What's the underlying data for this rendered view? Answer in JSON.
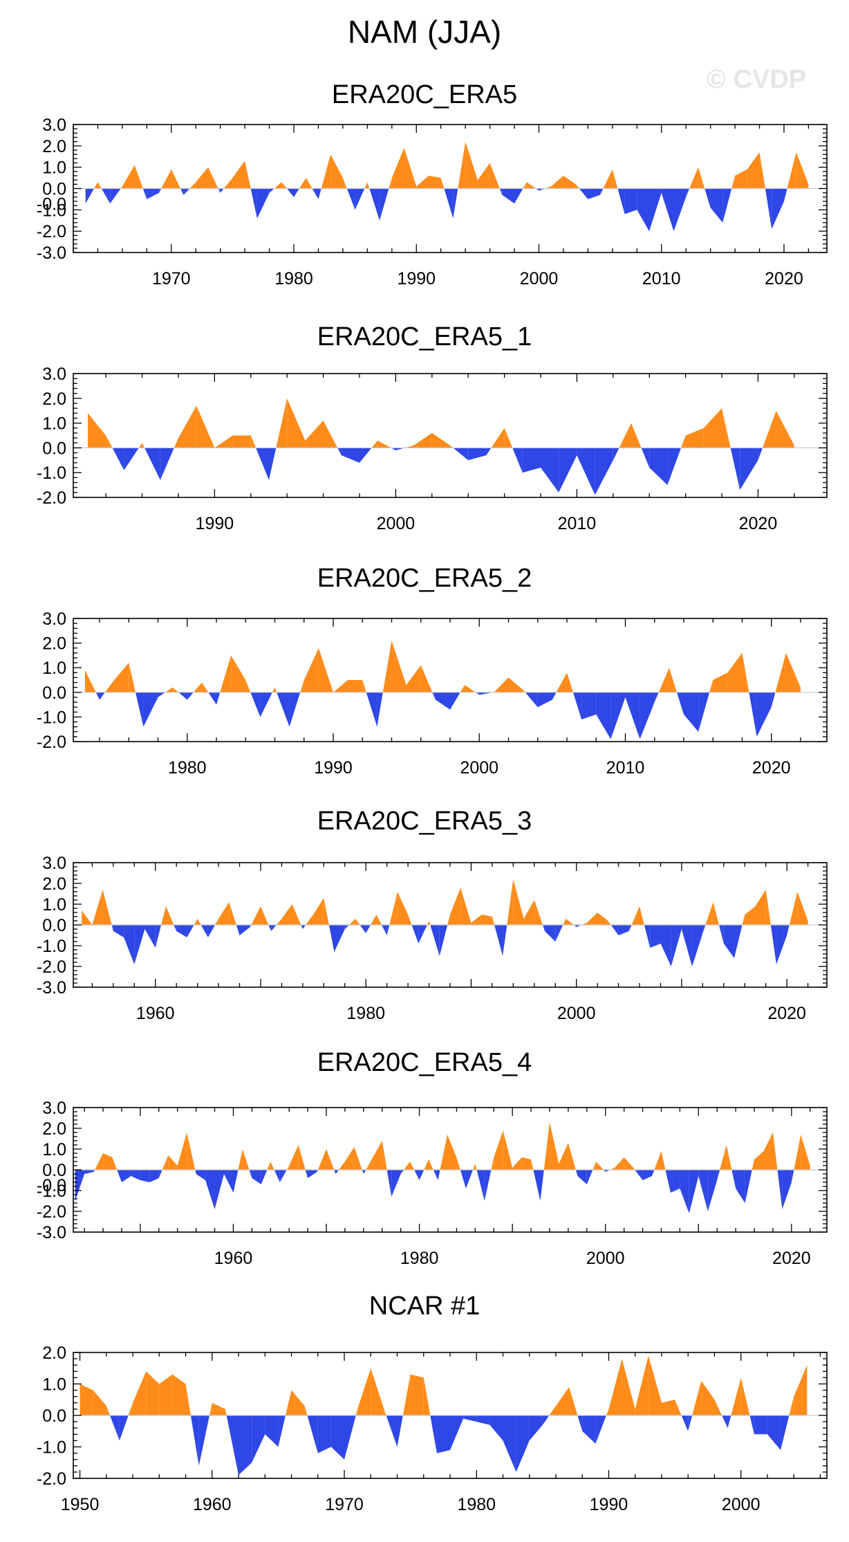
{
  "title": "NAM (JJA)",
  "watermark": "© CVDP",
  "colors": {
    "positive": "#ff8c1a",
    "negative": "#2e47e6",
    "axis": "#000000",
    "zero_line": "#c8c8c8"
  },
  "chart_data": [
    {
      "type": "area",
      "title": "ERA20C_ERA5",
      "xlim": [
        1962,
        2023.5
      ],
      "ylim": [
        -3.0,
        3.0
      ],
      "yticks": [
        "3.0",
        "2.0",
        "1.0",
        "0.0",
        "-0.0",
        "-1.0",
        "-2.0",
        "-3.0"
      ],
      "ytick_values": [
        3.0,
        2.0,
        1.0,
        0.0,
        -0.0,
        -1.0,
        -2.0,
        -3.0
      ],
      "xticks": [
        1970,
        1980,
        1990,
        2000,
        2010,
        2020
      ],
      "x_start": 1963,
      "values": [
        -0.7,
        0.3,
        -0.7,
        0.1,
        1.1,
        -0.5,
        -0.2,
        0.9,
        -0.3,
        0.3,
        1.0,
        -0.2,
        0.5,
        1.3,
        -1.4,
        -0.2,
        0.3,
        -0.4,
        0.5,
        -0.5,
        1.6,
        0.5,
        -1.0,
        0.3,
        -1.5,
        0.5,
        1.9,
        0.1,
        0.6,
        0.5,
        -1.4,
        2.2,
        0.4,
        1.2,
        -0.3,
        -0.7,
        0.3,
        -0.1,
        0.1,
        0.6,
        0.2,
        -0.5,
        -0.3,
        0.9,
        -1.2,
        -1.0,
        -2.0,
        -0.2,
        -2.0,
        -0.4,
        1.0,
        -0.9,
        -1.6,
        0.6,
        0.9,
        1.7,
        -1.9,
        -0.6,
        1.7,
        0.2
      ]
    },
    {
      "type": "area",
      "title": "ERA20C_ERA5_1",
      "xlim": [
        1982.2,
        2023.8
      ],
      "ylim": [
        -2.0,
        3.0
      ],
      "yticks": [
        "3.0",
        "2.0",
        "1.0",
        "0.0",
        "-1.0",
        "-2.0"
      ],
      "ytick_values": [
        3.0,
        2.0,
        1.0,
        0.0,
        -1.0,
        -2.0
      ],
      "xticks": [
        1990,
        2000,
        2010,
        2020
      ],
      "x_start": 1983,
      "values": [
        1.4,
        0.5,
        -0.9,
        0.2,
        -1.3,
        0.4,
        1.7,
        0.0,
        0.5,
        0.5,
        -1.3,
        2.0,
        0.3,
        1.1,
        -0.3,
        -0.6,
        0.3,
        -0.1,
        0.1,
        0.6,
        0.1,
        -0.5,
        -0.3,
        0.8,
        -1.0,
        -0.8,
        -1.8,
        -0.3,
        -1.9,
        -0.5,
        1.0,
        -0.8,
        -1.5,
        0.5,
        0.8,
        1.6,
        -1.7,
        -0.5,
        1.5,
        0.1
      ]
    },
    {
      "type": "area",
      "title": "ERA20C_ERA5_2",
      "xlim": [
        1972.2,
        2023.8
      ],
      "ylim": [
        -2.0,
        3.0
      ],
      "yticks": [
        "3.0",
        "2.0",
        "1.0",
        "0.0",
        "-1.0",
        "-2.0"
      ],
      "ytick_values": [
        3.0,
        2.0,
        1.0,
        0.0,
        -1.0,
        -2.0
      ],
      "xticks": [
        1980,
        1990,
        2000,
        2010,
        2020
      ],
      "x_start": 1973,
      "values": [
        0.9,
        -0.3,
        0.5,
        1.2,
        -1.4,
        -0.2,
        0.2,
        -0.3,
        0.4,
        -0.5,
        1.5,
        0.5,
        -1.0,
        0.2,
        -1.4,
        0.5,
        1.8,
        0.0,
        0.5,
        0.5,
        -1.4,
        2.1,
        0.3,
        1.1,
        -0.3,
        -0.7,
        0.3,
        -0.1,
        0.0,
        0.6,
        0.1,
        -0.6,
        -0.3,
        0.8,
        -1.1,
        -0.9,
        -1.9,
        -0.2,
        -1.9,
        -0.4,
        1.0,
        -0.9,
        -1.6,
        0.5,
        0.8,
        1.6,
        -1.8,
        -0.6,
        1.6,
        0.2
      ]
    },
    {
      "type": "area",
      "title": "ERA20C_ERA5_3",
      "xlim": [
        1952.2,
        2023.8
      ],
      "ylim": [
        -3.0,
        3.0
      ],
      "yticks": [
        "3.0",
        "2.0",
        "1.0",
        "0.0",
        "-1.0",
        "-2.0",
        "-3.0"
      ],
      "ytick_values": [
        3.0,
        2.0,
        1.0,
        0.0,
        -1.0,
        -2.0,
        -3.0
      ],
      "xticks": [
        1960,
        1980,
        2000,
        2020
      ],
      "x_start": 1953,
      "values": [
        0.7,
        0.0,
        1.7,
        -0.3,
        -0.6,
        -1.9,
        -0.2,
        -1.1,
        0.9,
        -0.3,
        -0.6,
        0.3,
        -0.6,
        0.3,
        1.1,
        -0.5,
        -0.1,
        0.9,
        -0.3,
        0.3,
        1.0,
        -0.2,
        0.5,
        1.3,
        -1.3,
        -0.2,
        0.3,
        -0.4,
        0.5,
        -0.5,
        1.6,
        0.5,
        -0.9,
        0.2,
        -1.5,
        0.5,
        1.8,
        0.1,
        0.5,
        0.4,
        -1.5,
        2.2,
        0.3,
        1.2,
        -0.3,
        -0.8,
        0.3,
        -0.1,
        0.1,
        0.6,
        0.2,
        -0.5,
        -0.3,
        0.9,
        -1.1,
        -0.9,
        -2.0,
        -0.2,
        -2.0,
        -0.4,
        1.1,
        -0.9,
        -1.6,
        0.5,
        0.9,
        1.7,
        -1.9,
        -0.5,
        1.6,
        0.2
      ]
    },
    {
      "type": "area",
      "title": "ERA20C_ERA5_4",
      "xlim": [
        1942.8,
        2023.8
      ],
      "ylim": [
        -3.0,
        3.0
      ],
      "yticks": [
        "3.0",
        "2.0",
        "1.0",
        "0.0",
        "-0.0",
        "-1.0",
        "-2.0",
        "-3.0"
      ],
      "ytick_values": [
        3.0,
        2.0,
        1.0,
        0.0,
        -0.0,
        -1.0,
        -2.0,
        -3.0
      ],
      "xticks": [
        1960,
        1980,
        2000,
        2020
      ],
      "x_start": 1943,
      "values": [
        -1.5,
        -0.2,
        -0.1,
        0.8,
        0.6,
        -0.6,
        -0.3,
        -0.5,
        -0.6,
        -0.4,
        0.7,
        0.2,
        1.8,
        -0.2,
        -0.5,
        -1.9,
        -0.2,
        -1.1,
        1.0,
        -0.4,
        -0.7,
        0.4,
        -0.6,
        0.2,
        1.2,
        -0.4,
        -0.1,
        1.0,
        -0.2,
        0.4,
        1.1,
        -0.2,
        0.6,
        1.4,
        -1.3,
        -0.2,
        0.4,
        -0.5,
        0.5,
        -0.5,
        1.7,
        0.6,
        -0.9,
        0.3,
        -1.5,
        0.6,
        1.9,
        0.1,
        0.6,
        0.5,
        -1.5,
        2.3,
        0.3,
        1.3,
        -0.3,
        -0.7,
        0.4,
        -0.1,
        0.1,
        0.6,
        0.1,
        -0.5,
        -0.3,
        0.9,
        -1.1,
        -0.9,
        -2.1,
        -0.3,
        -2.0,
        -0.5,
        1.2,
        -0.9,
        -1.6,
        0.5,
        0.9,
        1.8,
        -1.9,
        -0.6,
        1.7,
        0.2
      ]
    },
    {
      "type": "area",
      "title": "NCAR #1",
      "xlim": [
        1949.5,
        2006.5
      ],
      "ylim": [
        -2.0,
        2.0
      ],
      "yticks": [
        "2.0",
        "1.0",
        "0.0",
        "-1.0",
        "-2.0"
      ],
      "ytick_values": [
        2.0,
        1.0,
        0.0,
        -1.0,
        -2.0
      ],
      "xticks": [
        1950,
        1960,
        1970,
        1980,
        1990,
        2000
      ],
      "x_start": 1950,
      "values": [
        1.0,
        0.8,
        0.3,
        -0.8,
        0.4,
        1.4,
        1.0,
        1.3,
        1.0,
        -1.6,
        0.4,
        0.2,
        -1.9,
        -1.5,
        -0.6,
        -1.0,
        0.8,
        0.3,
        -1.2,
        -1.0,
        -1.4,
        0.2,
        1.5,
        0.2,
        -1.0,
        1.3,
        1.2,
        -1.2,
        -1.1,
        -0.1,
        -0.2,
        -0.3,
        -0.8,
        -1.8,
        -0.8,
        -0.3,
        0.3,
        0.9,
        -0.5,
        -0.9,
        0.2,
        1.8,
        0.2,
        1.9,
        0.4,
        0.5,
        -0.5,
        1.1,
        0.5,
        -0.4,
        1.2,
        -0.6,
        -0.6,
        -1.1,
        0.6,
        1.6
      ]
    }
  ]
}
